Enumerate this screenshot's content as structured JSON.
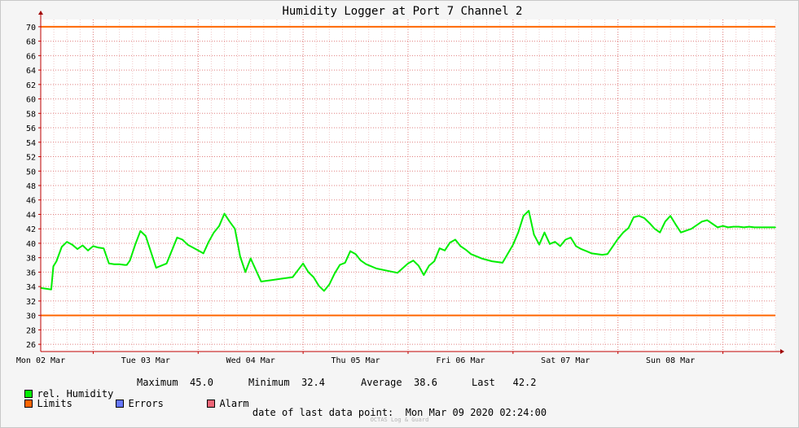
{
  "chart_data": {
    "type": "line",
    "title": "Humidity Logger at Port 7 Channel 2",
    "xlabel": "",
    "ylabel": "",
    "ylim": [
      25,
      71
    ],
    "yticks": [
      26,
      28,
      30,
      32,
      34,
      36,
      38,
      40,
      42,
      44,
      46,
      48,
      50,
      52,
      54,
      56,
      58,
      60,
      62,
      64,
      66,
      68,
      70
    ],
    "xlim_days": [
      0.5,
      7.5
    ],
    "x_unit": "days starting Mon 02 Mar 2020 00:00",
    "xtick_labels": [
      "Mon 02 Mar",
      "Tue 03 Mar",
      "Wed 04 Mar",
      "Thu 05 Mar",
      "Fri 06 Mar",
      "Sat 07 Mar",
      "Sun 08 Mar"
    ],
    "limits": {
      "upper": 70,
      "lower": 30,
      "color": "#ff6600"
    },
    "grid": true,
    "series": [
      {
        "name": "rel. Humidity",
        "color": "#00ee00",
        "x": [
          0.5,
          0.6,
          0.62,
          0.65,
          0.7,
          0.75,
          0.8,
          0.85,
          0.9,
          0.95,
          1.0,
          1.05,
          1.1,
          1.15,
          1.2,
          1.25,
          1.3,
          1.32,
          1.35,
          1.4,
          1.45,
          1.5,
          1.6,
          1.7,
          1.8,
          1.85,
          1.9,
          2.0,
          2.05,
          2.1,
          2.15,
          2.2,
          2.25,
          2.3,
          2.35,
          2.4,
          2.45,
          2.5,
          2.6,
          2.7,
          2.8,
          2.9,
          3.0,
          3.05,
          3.1,
          3.15,
          3.2,
          3.25,
          3.3,
          3.35,
          3.4,
          3.45,
          3.5,
          3.55,
          3.6,
          3.7,
          3.8,
          3.9,
          4.0,
          4.05,
          4.1,
          4.15,
          4.2,
          4.25,
          4.3,
          4.35,
          4.4,
          4.45,
          4.5,
          4.55,
          4.6,
          4.65,
          4.7,
          4.8,
          4.9,
          5.0,
          5.05,
          5.1,
          5.15,
          5.2,
          5.25,
          5.3,
          5.35,
          5.4,
          5.45,
          5.5,
          5.55,
          5.6,
          5.65,
          5.7,
          5.75,
          5.8,
          5.85,
          5.9,
          6.0,
          6.05,
          6.1,
          6.15,
          6.2,
          6.25,
          6.3,
          6.35,
          6.4,
          6.45,
          6.5,
          6.55,
          6.6,
          6.7,
          6.8,
          6.85,
          6.9,
          6.95,
          7.0,
          7.05,
          7.1,
          7.15,
          7.2,
          7.25,
          7.3,
          7.35,
          7.4,
          7.5
        ],
        "values": [
          33.8,
          33.6,
          36.8,
          37.5,
          39.5,
          40.2,
          39.8,
          39.2,
          39.7,
          39.0,
          39.6,
          39.4,
          39.3,
          37.2,
          37.1,
          37.1,
          37.0,
          37.0,
          37.6,
          39.8,
          41.7,
          41.0,
          36.6,
          37.2,
          40.8,
          40.5,
          39.8,
          39.0,
          38.6,
          40.2,
          41.5,
          42.4,
          44.1,
          43.0,
          42.0,
          38.2,
          36.0,
          37.9,
          34.7,
          34.9,
          35.1,
          35.3,
          37.2,
          36.0,
          35.3,
          34.1,
          33.4,
          34.3,
          35.8,
          37.0,
          37.3,
          38.9,
          38.5,
          37.6,
          37.1,
          36.5,
          36.2,
          35.9,
          37.2,
          37.6,
          36.9,
          35.6,
          36.9,
          37.5,
          39.3,
          39.0,
          40.1,
          40.5,
          39.6,
          39.1,
          38.5,
          38.2,
          37.9,
          37.5,
          37.3,
          39.8,
          41.5,
          43.8,
          44.5,
          41.2,
          39.8,
          41.5,
          39.9,
          40.2,
          39.6,
          40.5,
          40.8,
          39.6,
          39.2,
          38.9,
          38.6,
          38.5,
          38.4,
          38.5,
          40.6,
          41.5,
          42.1,
          43.6,
          43.8,
          43.5,
          42.8,
          42.0,
          41.5,
          43.0,
          43.8,
          42.6,
          41.5,
          42.0,
          43.0,
          43.2,
          42.7,
          42.2,
          42.4,
          42.2,
          42.3,
          42.3,
          42.2,
          42.3,
          42.2,
          42.2,
          42.2,
          42.2
        ]
      }
    ]
  },
  "legend": {
    "series_label": "rel. Humidity",
    "max_label": "Maximum",
    "max_value": "45.0",
    "min_label": "Minimum",
    "min_value": "32.4",
    "avg_label": "Average",
    "avg_value": "38.6",
    "last_label": "Last",
    "last_value": "42.2",
    "limits_label": "Limits",
    "errors_label": "Errors",
    "alarm_label": "Alarm",
    "colors": {
      "series": "#00ee00",
      "limits": "#ff6600",
      "errors": "#6677ff",
      "alarm": "#ee6677"
    }
  },
  "footer": {
    "date_label": "date of last data point:",
    "date_value": "Mon Mar 09 2020 02:24:00",
    "watermark": "OCTAS Log & Guard"
  }
}
